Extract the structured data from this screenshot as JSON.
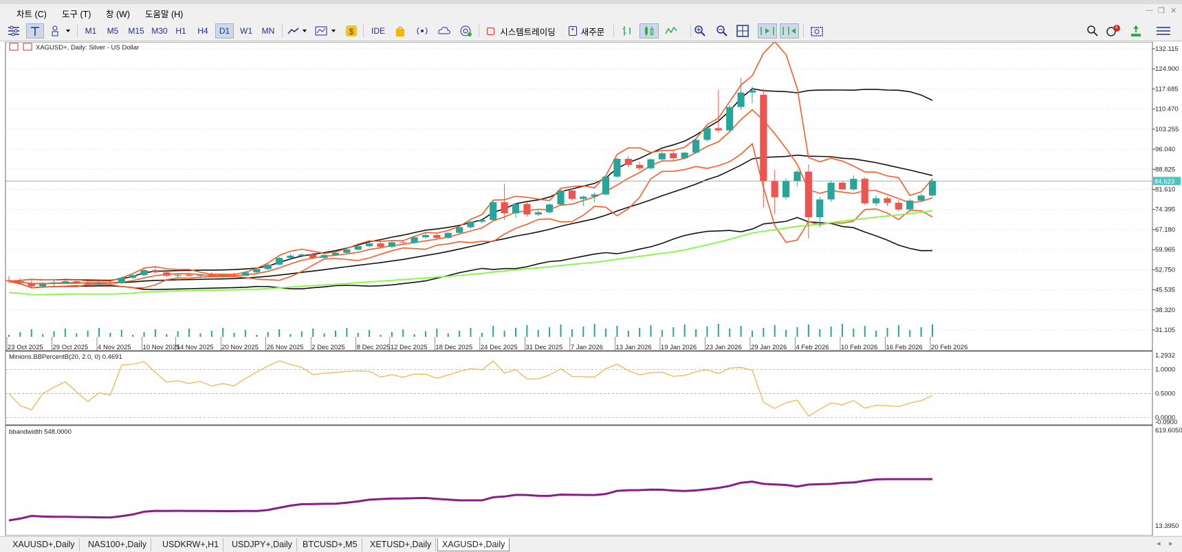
{
  "menu": {
    "items": [
      {
        "label": "차트 (C)"
      },
      {
        "label": "도구 (T)"
      },
      {
        "label": "창 (W)"
      },
      {
        "label": "도움말 (H)"
      }
    ]
  },
  "toolbar": {
    "timeframes": [
      "M1",
      "M5",
      "M15",
      "M30",
      "H1",
      "H4",
      "D1",
      "W1",
      "MN"
    ],
    "active_timeframe": "D1",
    "ide_label": "IDE",
    "algo_label": "시스템트레이딩",
    "new_order_label": "새주문",
    "notification_count": "1"
  },
  "chart": {
    "symbol_title": "XAGUSD+, Daily:  Silver - US Dollar",
    "current_price": "84.623",
    "price_axis": [
      "132.115",
      "124.900",
      "117.685",
      "110.470",
      "103.255",
      "96.040",
      "88.825",
      "81.610",
      "74.395",
      "67.180",
      "59.965",
      "52.750",
      "45.535",
      "38.320",
      "31.105"
    ],
    "date_axis": [
      "23 Oct 2025",
      "29 Oct 2025",
      "4 Nov 2025",
      "10 Nov 2025",
      "14 Nov 2025",
      "20 Nov 2025",
      "26 Nov 2025",
      "2 Dec 2025",
      "8 Dec 2025",
      "12 Dec 2025",
      "18 Dec 2025",
      "24 Dec 2025",
      "31 Dec 2025",
      "7 Jan 2026",
      "13 Jan 2026",
      "19 Jan 2026",
      "23 Jan 2026",
      "29 Jan 2026",
      "4 Feb 2026",
      "10 Feb 2026",
      "16 Feb 2026",
      "20 Feb 2026"
    ],
    "colors": {
      "bull": "#26a69a",
      "bear": "#ef5350",
      "bb_inner": "#ff5a1f",
      "bb_outer": "#111111",
      "ma": "#7cfc3a",
      "pctb": "#f5b042",
      "bandwidth": "#8b1a8b",
      "price_line": "#4fc3c0"
    }
  },
  "indicator1": {
    "label": "Minions.BBPercentB(20, 2.0, 0) 0.4691",
    "axis": [
      "1.2932",
      "1.0000",
      "0.5000",
      "0.0000",
      "-0.0900"
    ]
  },
  "indicator2": {
    "label": "bbandwidth 548.0000",
    "axis": [
      "619.6050",
      "13.3950"
    ]
  },
  "tabs": [
    "XAUUSD+,Daily",
    "NAS100+,Daily",
    "USDKRW+,H1",
    "USDJPY+,Daily",
    "BTCUSD+,M5",
    "XETUSD+,Daily",
    "XAGUSD+,Daily"
  ],
  "active_tab": "XAGUSD+,Daily",
  "chart_data": {
    "type": "candlestick",
    "title": "XAGUSD+, Daily:  Silver - US Dollar",
    "ylim": [
      31.105,
      132.115
    ],
    "candles": [
      {
        "o": 49.0,
        "h": 50.5,
        "l": 47.8,
        "c": 48.6
      },
      {
        "o": 48.6,
        "h": 49.8,
        "l": 47.2,
        "c": 48.0
      },
      {
        "o": 48.0,
        "h": 49.0,
        "l": 46.0,
        "c": 46.8
      },
      {
        "o": 46.8,
        "h": 48.2,
        "l": 46.2,
        "c": 47.8
      },
      {
        "o": 47.8,
        "h": 48.8,
        "l": 47.0,
        "c": 48.2
      },
      {
        "o": 48.2,
        "h": 49.0,
        "l": 47.6,
        "c": 48.6
      },
      {
        "o": 48.6,
        "h": 49.4,
        "l": 47.8,
        "c": 48.1
      },
      {
        "o": 48.1,
        "h": 48.9,
        "l": 47.2,
        "c": 47.6
      },
      {
        "o": 47.6,
        "h": 48.6,
        "l": 47.0,
        "c": 48.0
      },
      {
        "o": 48.0,
        "h": 48.8,
        "l": 47.4,
        "c": 47.9
      },
      {
        "o": 47.9,
        "h": 50.2,
        "l": 47.6,
        "c": 49.8
      },
      {
        "o": 49.8,
        "h": 51.4,
        "l": 49.4,
        "c": 50.8
      },
      {
        "o": 50.8,
        "h": 53.2,
        "l": 50.4,
        "c": 52.6
      },
      {
        "o": 52.6,
        "h": 54.0,
        "l": 51.4,
        "c": 51.8
      },
      {
        "o": 51.8,
        "h": 52.6,
        "l": 50.2,
        "c": 50.6
      },
      {
        "o": 50.6,
        "h": 51.4,
        "l": 50.0,
        "c": 50.9
      },
      {
        "o": 50.9,
        "h": 51.6,
        "l": 50.2,
        "c": 50.6
      },
      {
        "o": 50.6,
        "h": 51.2,
        "l": 49.8,
        "c": 51.0
      },
      {
        "o": 51.0,
        "h": 51.8,
        "l": 50.0,
        "c": 50.4
      },
      {
        "o": 50.4,
        "h": 51.0,
        "l": 49.6,
        "c": 50.8
      },
      {
        "o": 50.8,
        "h": 51.6,
        "l": 50.2,
        "c": 50.6
      },
      {
        "o": 50.6,
        "h": 52.2,
        "l": 50.4,
        "c": 51.8
      },
      {
        "o": 51.8,
        "h": 53.4,
        "l": 51.4,
        "c": 53.0
      },
      {
        "o": 53.0,
        "h": 55.0,
        "l": 52.6,
        "c": 54.6
      },
      {
        "o": 54.6,
        "h": 57.4,
        "l": 54.2,
        "c": 57.0
      },
      {
        "o": 57.0,
        "h": 58.4,
        "l": 56.6,
        "c": 57.8
      },
      {
        "o": 57.8,
        "h": 58.6,
        "l": 57.0,
        "c": 58.2
      },
      {
        "o": 58.2,
        "h": 58.8,
        "l": 56.6,
        "c": 57.0
      },
      {
        "o": 57.0,
        "h": 58.6,
        "l": 56.6,
        "c": 58.0
      },
      {
        "o": 58.0,
        "h": 59.2,
        "l": 57.6,
        "c": 58.8
      },
      {
        "o": 58.8,
        "h": 60.4,
        "l": 58.4,
        "c": 60.0
      },
      {
        "o": 60.0,
        "h": 61.6,
        "l": 59.6,
        "c": 61.2
      },
      {
        "o": 61.2,
        "h": 62.6,
        "l": 60.8,
        "c": 62.2
      },
      {
        "o": 62.2,
        "h": 62.8,
        "l": 60.4,
        "c": 61.0
      },
      {
        "o": 61.0,
        "h": 63.0,
        "l": 60.6,
        "c": 62.6
      },
      {
        "o": 62.6,
        "h": 63.4,
        "l": 62.0,
        "c": 62.4
      },
      {
        "o": 62.4,
        "h": 64.6,
        "l": 62.0,
        "c": 64.4
      },
      {
        "o": 64.4,
        "h": 65.8,
        "l": 64.0,
        "c": 65.2
      },
      {
        "o": 65.2,
        "h": 66.0,
        "l": 63.8,
        "c": 64.2
      },
      {
        "o": 64.2,
        "h": 66.2,
        "l": 63.8,
        "c": 66.0
      },
      {
        "o": 66.0,
        "h": 68.4,
        "l": 65.6,
        "c": 68.0
      },
      {
        "o": 68.0,
        "h": 70.4,
        "l": 67.6,
        "c": 70.0
      },
      {
        "o": 70.0,
        "h": 71.0,
        "l": 69.4,
        "c": 70.6
      },
      {
        "o": 70.6,
        "h": 77.6,
        "l": 70.2,
        "c": 77.0
      },
      {
        "o": 77.0,
        "h": 83.6,
        "l": 70.6,
        "c": 73.0
      },
      {
        "o": 73.0,
        "h": 76.8,
        "l": 71.4,
        "c": 76.4
      },
      {
        "o": 76.4,
        "h": 77.2,
        "l": 71.8,
        "c": 72.6
      },
      {
        "o": 72.6,
        "h": 74.0,
        "l": 72.0,
        "c": 73.4
      },
      {
        "o": 73.4,
        "h": 76.6,
        "l": 73.0,
        "c": 76.2
      },
      {
        "o": 76.2,
        "h": 81.6,
        "l": 75.8,
        "c": 81.2
      },
      {
        "o": 81.2,
        "h": 82.0,
        "l": 77.6,
        "c": 78.2
      },
      {
        "o": 78.2,
        "h": 79.4,
        "l": 75.6,
        "c": 79.0
      },
      {
        "o": 79.0,
        "h": 80.4,
        "l": 77.0,
        "c": 79.8
      },
      {
        "o": 79.8,
        "h": 86.6,
        "l": 79.4,
        "c": 86.2
      },
      {
        "o": 86.2,
        "h": 93.0,
        "l": 85.8,
        "c": 92.6
      },
      {
        "o": 92.6,
        "h": 93.6,
        "l": 89.6,
        "c": 90.4
      },
      {
        "o": 90.4,
        "h": 91.6,
        "l": 88.6,
        "c": 89.2
      },
      {
        "o": 89.2,
        "h": 92.8,
        "l": 88.8,
        "c": 92.4
      },
      {
        "o": 92.4,
        "h": 95.4,
        "l": 92.0,
        "c": 94.6
      },
      {
        "o": 94.6,
        "h": 95.6,
        "l": 91.8,
        "c": 92.8
      },
      {
        "o": 92.8,
        "h": 95.2,
        "l": 92.4,
        "c": 94.8
      },
      {
        "o": 94.8,
        "h": 99.8,
        "l": 94.4,
        "c": 99.4
      },
      {
        "o": 99.4,
        "h": 104.4,
        "l": 98.8,
        "c": 103.6
      },
      {
        "o": 103.6,
        "h": 117.4,
        "l": 102.0,
        "c": 102.8
      },
      {
        "o": 102.8,
        "h": 112.0,
        "l": 102.2,
        "c": 111.2
      },
      {
        "o": 111.2,
        "h": 121.6,
        "l": 110.2,
        "c": 116.4
      },
      {
        "o": 116.4,
        "h": 118.6,
        "l": 112.6,
        "c": 117.2
      },
      {
        "o": 115.6,
        "h": 117.8,
        "l": 75.0,
        "c": 84.6
      },
      {
        "o": 84.6,
        "h": 88.6,
        "l": 72.8,
        "c": 78.8
      },
      {
        "o": 78.8,
        "h": 85.6,
        "l": 78.0,
        "c": 84.6
      },
      {
        "o": 84.6,
        "h": 88.6,
        "l": 82.8,
        "c": 88.0
      },
      {
        "o": 88.0,
        "h": 90.6,
        "l": 64.0,
        "c": 71.6
      },
      {
        "o": 71.6,
        "h": 79.0,
        "l": 68.0,
        "c": 78.0
      },
      {
        "o": 78.0,
        "h": 84.6,
        "l": 77.2,
        "c": 84.0
      },
      {
        "o": 84.0,
        "h": 84.6,
        "l": 81.4,
        "c": 81.6
      },
      {
        "o": 81.6,
        "h": 86.6,
        "l": 81.2,
        "c": 85.4
      },
      {
        "o": 85.4,
        "h": 86.0,
        "l": 76.0,
        "c": 76.6
      },
      {
        "o": 76.6,
        "h": 79.4,
        "l": 75.6,
        "c": 78.4
      },
      {
        "o": 78.4,
        "h": 79.0,
        "l": 75.8,
        "c": 76.8
      },
      {
        "o": 76.8,
        "h": 77.8,
        "l": 73.8,
        "c": 74.4
      },
      {
        "o": 74.4,
        "h": 78.2,
        "l": 73.6,
        "c": 77.6
      },
      {
        "o": 77.6,
        "h": 80.0,
        "l": 77.2,
        "c": 79.4
      },
      {
        "o": 79.4,
        "h": 85.2,
        "l": 79.0,
        "c": 84.6
      }
    ]
  }
}
